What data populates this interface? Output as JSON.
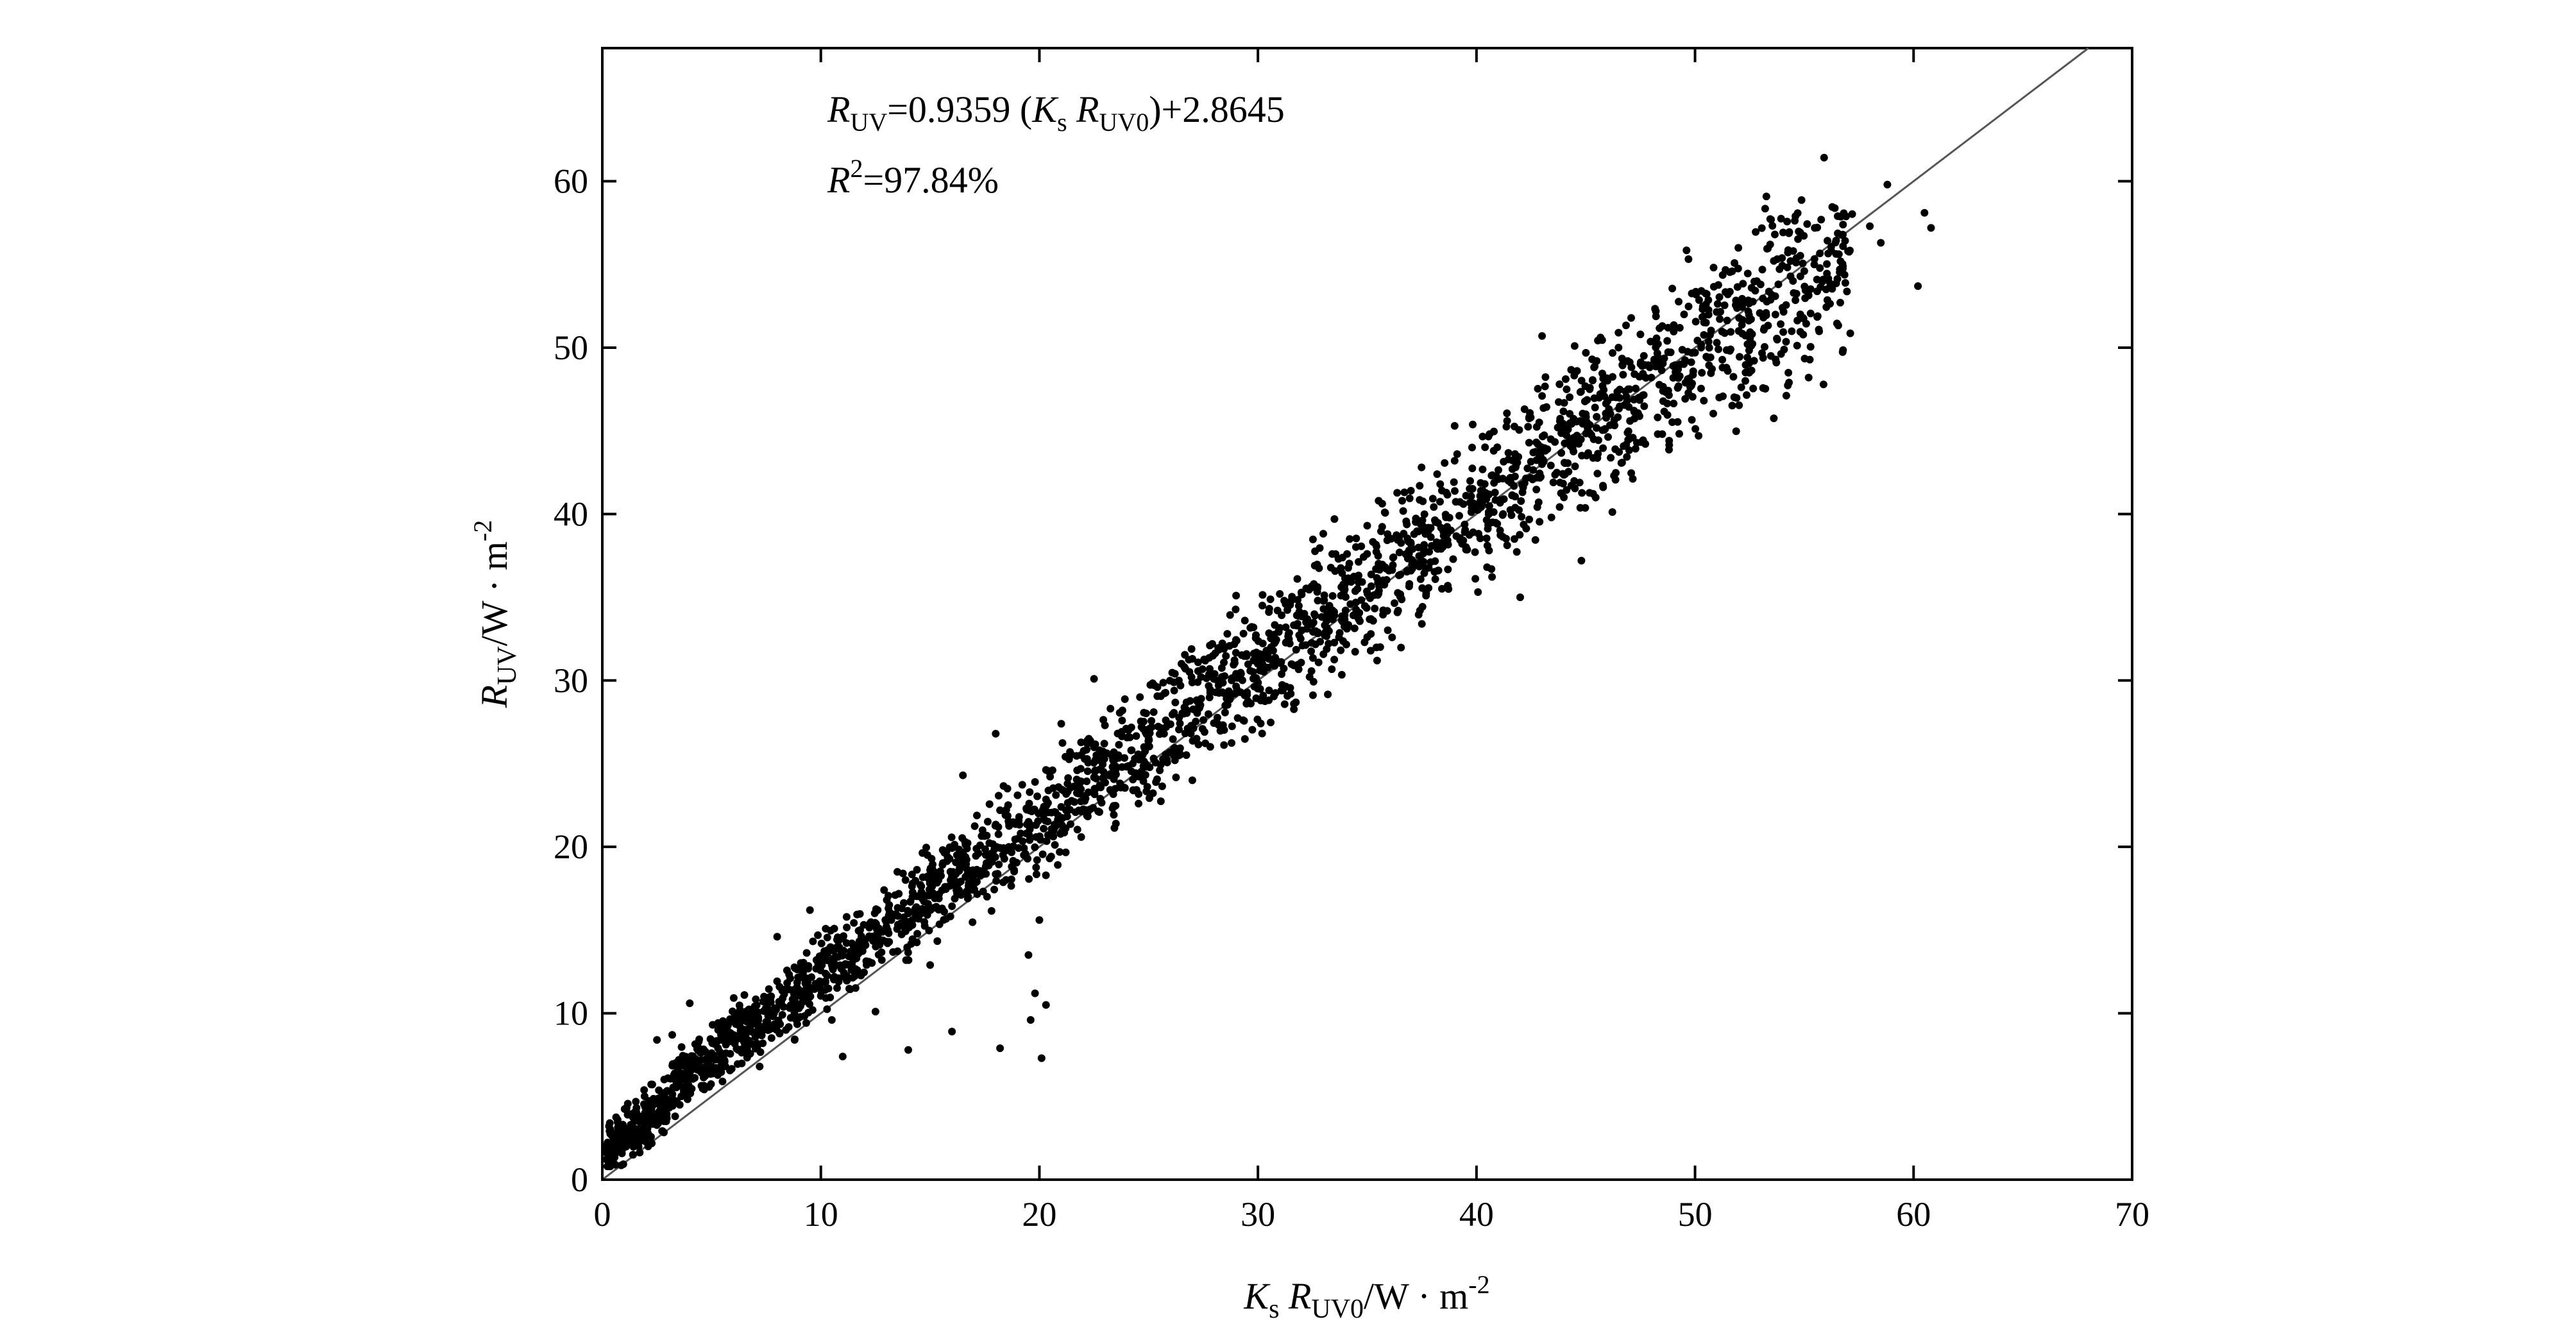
{
  "chart_data": {
    "type": "scatter",
    "title": "",
    "xlabel": {
      "k": "K",
      "k_sub": "s",
      "r": " R",
      "r_sub": "UV0",
      "unit": "/W · m",
      "unit_sup": "-2"
    },
    "ylabel": {
      "r": "R",
      "r_sub": "UV",
      "unit": "/W · m",
      "unit_sup": "-2"
    },
    "xlim": [
      0,
      70
    ],
    "ylim": [
      0,
      68
    ],
    "xticks": [
      0,
      10,
      20,
      30,
      40,
      50,
      60,
      70
    ],
    "yticks": [
      0,
      10,
      20,
      30,
      40,
      50,
      60
    ],
    "xtick_labels": [
      "0",
      "10",
      "20",
      "30",
      "40",
      "50",
      "60",
      "70"
    ],
    "ytick_labels": [
      "0",
      "10",
      "20",
      "30",
      "40",
      "50",
      "60"
    ],
    "grid": false,
    "reference_line": {
      "slope": 1,
      "intercept": 0
    },
    "annotations": {
      "equation": {
        "r": "R",
        "r_sub": "UV",
        "eq": "=0.9359 (",
        "k": "K",
        "k_sub": "s",
        "r2": " R",
        "r2_sub": "UV0",
        "tail": ")+2.8645"
      },
      "r_squared": {
        "r": "R",
        "sup": "2",
        "value": "=97.84%"
      }
    },
    "series": [
      {
        "marker_color": "#000000",
        "points": [
          [
            0.3,
            1.2
          ],
          [
            0.5,
            2.8
          ],
          [
            0.8,
            1.9
          ],
          [
            1.0,
            3.1
          ],
          [
            1.2,
            2.2
          ],
          [
            0.6,
            0.9
          ],
          [
            1.5,
            2.6
          ],
          [
            1.8,
            3.4
          ],
          [
            2.0,
            2.9
          ],
          [
            2.3,
            4.8
          ],
          [
            2.6,
            3.7
          ],
          [
            3.0,
            6.1
          ],
          [
            3.2,
            4.9
          ],
          [
            3.5,
            7.2
          ],
          [
            3.8,
            5.6
          ],
          [
            4.0,
            6.9
          ],
          [
            4.3,
            8.1
          ],
          [
            4.6,
            6.4
          ],
          [
            5.0,
            7.6
          ],
          [
            5.3,
            9.0
          ],
          [
            5.6,
            7.1
          ],
          [
            6.0,
            8.7
          ],
          [
            6.3,
            10.2
          ],
          [
            6.6,
            8.0
          ],
          [
            7.0,
            9.4
          ],
          [
            7.4,
            11.0
          ],
          [
            7.8,
            9.1
          ],
          [
            8.2,
            10.5
          ],
          [
            8.6,
            12.1
          ],
          [
            9.0,
            10.3
          ],
          [
            9.4,
            11.9
          ],
          [
            9.8,
            13.2
          ],
          [
            10.2,
            11.4
          ],
          [
            10.6,
            12.8
          ],
          [
            11.0,
            14.5
          ],
          [
            11.4,
            12.6
          ],
          [
            11.8,
            15.0
          ],
          [
            12.2,
            13.1
          ],
          [
            12.6,
            16.2
          ],
          [
            13.0,
            14.3
          ],
          [
            13.4,
            17.1
          ],
          [
            13.8,
            15.2
          ],
          [
            14.2,
            17.8
          ],
          [
            14.6,
            16.0
          ],
          [
            15.0,
            18.6
          ],
          [
            15.4,
            16.9
          ],
          [
            15.8,
            19.4
          ],
          [
            16.2,
            17.4
          ],
          [
            16.6,
            20.3
          ],
          [
            17.0,
            18.3
          ],
          [
            17.4,
            21.0
          ],
          [
            17.8,
            19.1
          ],
          [
            18.2,
            22.2
          ],
          [
            18.6,
            20.0
          ],
          [
            19.0,
            23.1
          ],
          [
            19.4,
            20.8
          ],
          [
            19.8,
            23.9
          ],
          [
            20.2,
            21.7
          ],
          [
            20.6,
            24.6
          ],
          [
            21.0,
            22.4
          ],
          [
            21.4,
            25.7
          ],
          [
            21.8,
            23.2
          ],
          [
            22.2,
            26.4
          ],
          [
            22.6,
            24.1
          ],
          [
            23.0,
            27.3
          ],
          [
            23.4,
            24.9
          ],
          [
            23.8,
            28.2
          ],
          [
            24.2,
            25.8
          ],
          [
            24.6,
            29.0
          ],
          [
            25.0,
            26.5
          ],
          [
            25.4,
            29.6
          ],
          [
            25.8,
            27.2
          ],
          [
            26.2,
            30.4
          ],
          [
            26.6,
            28.0
          ],
          [
            27.0,
            31.3
          ],
          [
            27.4,
            28.9
          ],
          [
            27.8,
            32.1
          ],
          [
            28.2,
            29.7
          ],
          [
            28.6,
            32.8
          ],
          [
            29.0,
            30.4
          ],
          [
            29.4,
            33.6
          ],
          [
            29.8,
            31.2
          ],
          [
            30.2,
            34.5
          ],
          [
            30.6,
            32.0
          ],
          [
            31.0,
            35.2
          ],
          [
            31.4,
            32.8
          ],
          [
            31.8,
            36.1
          ],
          [
            32.2,
            33.5
          ],
          [
            32.6,
            36.9
          ],
          [
            33.0,
            34.3
          ],
          [
            33.4,
            37.6
          ],
          [
            33.8,
            35.1
          ],
          [
            34.2,
            38.5
          ],
          [
            34.6,
            35.9
          ],
          [
            35.0,
            39.3
          ],
          [
            35.4,
            36.7
          ],
          [
            35.8,
            40.1
          ],
          [
            36.2,
            37.4
          ],
          [
            36.6,
            40.8
          ],
          [
            37.0,
            38.2
          ],
          [
            37.4,
            41.7
          ],
          [
            37.8,
            39.0
          ],
          [
            38.2,
            42.4
          ],
          [
            38.6,
            39.8
          ],
          [
            39.0,
            43.2
          ],
          [
            39.4,
            40.6
          ],
          [
            39.8,
            44.0
          ],
          [
            40.2,
            41.4
          ],
          [
            40.6,
            44.8
          ],
          [
            41.0,
            42.1
          ],
          [
            41.4,
            45.6
          ],
          [
            41.8,
            42.9
          ],
          [
            42.2,
            46.3
          ],
          [
            42.6,
            43.7
          ],
          [
            43.0,
            47.1
          ],
          [
            43.4,
            44.5
          ],
          [
            43.8,
            47.8
          ],
          [
            44.2,
            45.3
          ],
          [
            44.6,
            48.6
          ],
          [
            45.0,
            46.0
          ],
          [
            45.5,
            49.2
          ],
          [
            46.0,
            46.8
          ],
          [
            46.5,
            50.0
          ],
          [
            47.0,
            47.5
          ],
          [
            47.5,
            50.8
          ],
          [
            48.0,
            48.2
          ],
          [
            48.5,
            51.3
          ],
          [
            49.0,
            48.9
          ],
          [
            49.5,
            52.0
          ],
          [
            50.0,
            49.7
          ],
          [
            50.5,
            52.6
          ],
          [
            51.0,
            50.3
          ],
          [
            51.5,
            53.2
          ],
          [
            52.0,
            51.0
          ],
          [
            53.0,
            53.8
          ],
          [
            54.0,
            52.4
          ],
          [
            55.0,
            54.6
          ],
          [
            56.0,
            53.5
          ],
          [
            57.0,
            55.8
          ],
          [
            58.0,
            57.3
          ],
          [
            58.8,
            59.8
          ],
          [
            60.5,
            58.1
          ],
          [
            60.8,
            57.2
          ],
          [
            60.2,
            53.7
          ],
          [
            58.5,
            56.3
          ],
          [
            55.2,
            48.2
          ],
          [
            54.3,
            47.9
          ],
          [
            42.0,
            35.0
          ],
          [
            44.8,
            37.2
          ],
          [
            43.0,
            50.7
          ],
          [
            19.5,
            13.5
          ],
          [
            20.0,
            15.6
          ],
          [
            19.8,
            11.2
          ],
          [
            20.3,
            10.5
          ],
          [
            19.6,
            9.6
          ],
          [
            20.1,
            7.3
          ],
          [
            18.2,
            7.9
          ],
          [
            16.0,
            8.9
          ],
          [
            14.0,
            7.8
          ],
          [
            11.0,
            7.4
          ],
          [
            2.5,
            8.4
          ],
          [
            3.2,
            8.7
          ],
          [
            4.0,
            10.6
          ],
          [
            6.5,
            11.1
          ],
          [
            8.0,
            14.6
          ],
          [
            9.5,
            16.2
          ],
          [
            13.5,
            18.5
          ],
          [
            16.5,
            24.3
          ],
          [
            18.0,
            26.8
          ],
          [
            21.0,
            27.4
          ],
          [
            22.5,
            30.1
          ],
          [
            26.5,
            31.0
          ],
          [
            29.0,
            35.1
          ],
          [
            33.5,
            39.7
          ],
          [
            37.0,
            41.4
          ],
          [
            39.0,
            45.3
          ],
          [
            46.5,
            50.9
          ],
          [
            50.5,
            51.5
          ],
          [
            12.5,
            10.1
          ],
          [
            15.0,
            12.9
          ],
          [
            23.5,
            21.4
          ],
          [
            27.0,
            24.0
          ],
          [
            31.5,
            29.2
          ],
          [
            35.0,
            32.6
          ],
          [
            37.5,
            33.4
          ],
          [
            40.5,
            38.1
          ],
          [
            44.0,
            41.0
          ],
          [
            48.5,
            44.8
          ],
          [
            52.5,
            48.6
          ],
          [
            1.1,
            4.2
          ],
          [
            0.4,
            2.1
          ],
          [
            0.7,
            3.6
          ],
          [
            1.4,
            1.5
          ],
          [
            2.1,
            2.0
          ],
          [
            0.9,
            2.4
          ],
          [
            1.3,
            3.3
          ],
          [
            5.5,
            5.9
          ],
          [
            7.2,
            6.8
          ],
          [
            8.8,
            8.4
          ],
          [
            10.5,
            9.6
          ]
        ]
      }
    ]
  }
}
